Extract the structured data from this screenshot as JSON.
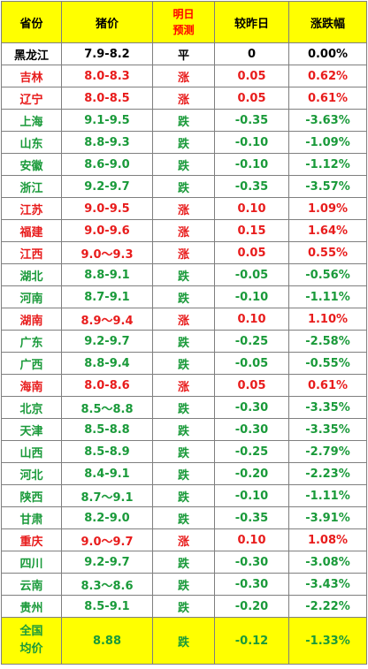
{
  "table": {
    "headers": {
      "province": "省份",
      "price": "猪价",
      "forecast_line1": "明日",
      "forecast_line2": "预测",
      "change": "较昨日",
      "pct": "涨跌幅"
    },
    "rows": [
      {
        "province": "黑龙江",
        "price": "7.9-8.2",
        "forecast": "平",
        "change": "0",
        "pct": "0.00%",
        "trend": "flat"
      },
      {
        "province": "吉林",
        "price": "8.0-8.3",
        "forecast": "涨",
        "change": "0.05",
        "pct": "0.62%",
        "trend": "up"
      },
      {
        "province": "辽宁",
        "price": "8.0-8.5",
        "forecast": "涨",
        "change": "0.05",
        "pct": "0.61%",
        "trend": "up"
      },
      {
        "province": "上海",
        "price": "9.1-9.5",
        "forecast": "跌",
        "change": "-0.35",
        "pct": "-3.63%",
        "trend": "down"
      },
      {
        "province": "山东",
        "price": "8.8-9.3",
        "forecast": "跌",
        "change": "-0.10",
        "pct": "-1.09%",
        "trend": "down"
      },
      {
        "province": "安徽",
        "price": "8.6-9.0",
        "forecast": "跌",
        "change": "-0.10",
        "pct": "-1.12%",
        "trend": "down"
      },
      {
        "province": "浙江",
        "price": "9.2-9.7",
        "forecast": "跌",
        "change": "-0.35",
        "pct": "-3.57%",
        "trend": "down"
      },
      {
        "province": "江苏",
        "price": "9.0-9.5",
        "forecast": "涨",
        "change": "0.10",
        "pct": "1.09%",
        "trend": "up"
      },
      {
        "province": "福建",
        "price": "9.0-9.6",
        "forecast": "涨",
        "change": "0.15",
        "pct": "1.64%",
        "trend": "up"
      },
      {
        "province": "江西",
        "price": "9.0～9.3",
        "forecast": "涨",
        "change": "0.05",
        "pct": "0.55%",
        "trend": "up"
      },
      {
        "province": "湖北",
        "price": "8.8-9.1",
        "forecast": "跌",
        "change": "-0.05",
        "pct": "-0.56%",
        "trend": "down"
      },
      {
        "province": "河南",
        "price": "8.7-9.1",
        "forecast": "跌",
        "change": "-0.10",
        "pct": "-1.11%",
        "trend": "down"
      },
      {
        "province": "湖南",
        "price": "8.9～9.4",
        "forecast": "涨",
        "change": "0.10",
        "pct": "1.10%",
        "trend": "up"
      },
      {
        "province": "广东",
        "price": "9.2-9.7",
        "forecast": "跌",
        "change": "-0.25",
        "pct": "-2.58%",
        "trend": "down"
      },
      {
        "province": "广西",
        "price": "8.8-9.4",
        "forecast": "跌",
        "change": "-0.05",
        "pct": "-0.55%",
        "trend": "down"
      },
      {
        "province": "海南",
        "price": "8.0-8.6",
        "forecast": "涨",
        "change": "0.05",
        "pct": "0.61%",
        "trend": "up"
      },
      {
        "province": "北京",
        "price": "8.5～8.8",
        "forecast": "跌",
        "change": "-0.30",
        "pct": "-3.35%",
        "trend": "down"
      },
      {
        "province": "天津",
        "price": "8.5-8.8",
        "forecast": "跌",
        "change": "-0.30",
        "pct": "-3.35%",
        "trend": "down"
      },
      {
        "province": "山西",
        "price": "8.5-8.9",
        "forecast": "跌",
        "change": "-0.25",
        "pct": "-2.79%",
        "trend": "down"
      },
      {
        "province": "河北",
        "price": "8.4-9.1",
        "forecast": "跌",
        "change": "-0.20",
        "pct": "-2.23%",
        "trend": "down"
      },
      {
        "province": "陕西",
        "price": "8.7～9.1",
        "forecast": "跌",
        "change": "-0.10",
        "pct": "-1.11%",
        "trend": "down"
      },
      {
        "province": "甘肃",
        "price": "8.2-9.0",
        "forecast": "跌",
        "change": "-0.35",
        "pct": "-3.91%",
        "trend": "down"
      },
      {
        "province": "重庆",
        "price": "9.0～9.7",
        "forecast": "涨",
        "change": "0.10",
        "pct": "1.08%",
        "trend": "up"
      },
      {
        "province": "四川",
        "price": "9.2-9.7",
        "forecast": "跌",
        "change": "-0.30",
        "pct": "-3.08%",
        "trend": "down"
      },
      {
        "province": "云南",
        "price": "8.3～8.6",
        "forecast": "跌",
        "change": "-0.30",
        "pct": "-3.43%",
        "trend": "down"
      },
      {
        "province": "贵州",
        "price": "8.5-9.1",
        "forecast": "跌",
        "change": "-0.20",
        "pct": "-2.22%",
        "trend": "down"
      }
    ],
    "footer": {
      "province_line1": "全国",
      "province_line2": "均价",
      "price": "8.88",
      "forecast": "跌",
      "change": "-0.12",
      "pct": "-1.33%"
    }
  },
  "colors": {
    "header_bg": "#ffff00",
    "up": "#e81c1c",
    "down": "#1a9a3a",
    "flat": "#000000",
    "border": "#7f7f7f"
  }
}
